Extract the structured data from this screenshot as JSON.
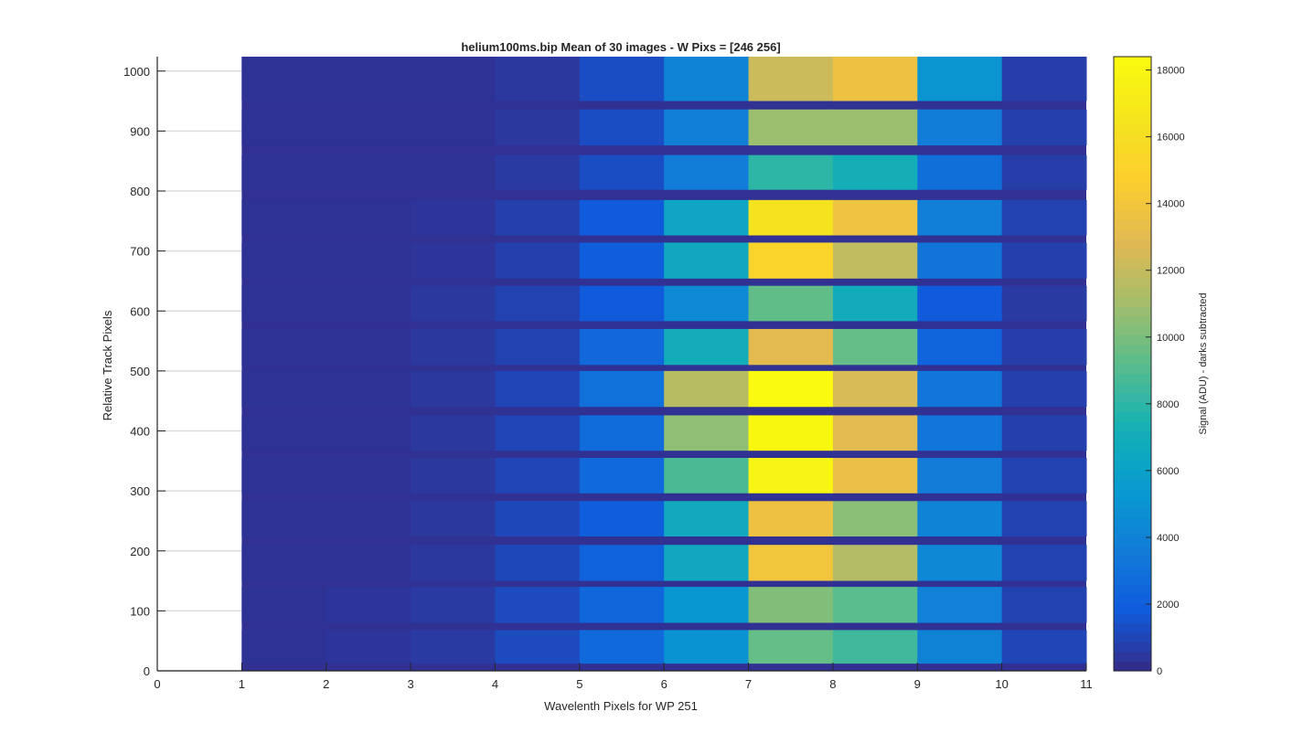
{
  "chart_data": {
    "type": "heatmap",
    "title": "helium100ms.bip  Mean of 30 images - W Pixs = [246  256]",
    "xlabel": "Wavelenth Pixels for WP 251",
    "ylabel": "Relative Track Pixels",
    "xlim": [
      0,
      11
    ],
    "ylim": [
      0,
      1024
    ],
    "xticks": [
      "0",
      "1",
      "2",
      "3",
      "4",
      "5",
      "6",
      "7",
      "8",
      "9",
      "10",
      "11"
    ],
    "yticks": [
      "0",
      "100",
      "200",
      "300",
      "400",
      "500",
      "600",
      "700",
      "800",
      "900",
      "1000"
    ],
    "grid": true,
    "colorbar": {
      "label": "Signal (ADU) - darks subtracted",
      "range": [
        0,
        18400
      ],
      "ticks": [
        "0",
        "2000",
        "4000",
        "6000",
        "8000",
        "10000",
        "12000",
        "14000",
        "16000",
        "18000"
      ],
      "colormap": "parula"
    },
    "columns_x_start": [
      1,
      2,
      3,
      4,
      5,
      6,
      7,
      8,
      9,
      10
    ],
    "bands": [
      {
        "y0": 12,
        "y1": 68,
        "values": [
          300,
          400,
          600,
          1200,
          2600,
          5000,
          9500,
          8500,
          4000,
          1000
        ]
      },
      {
        "y0": 80,
        "y1": 140,
        "values": [
          300,
          400,
          600,
          1200,
          2400,
          5200,
          10200,
          9200,
          3900,
          900
        ]
      },
      {
        "y0": 150,
        "y1": 210,
        "values": [
          300,
          300,
          500,
          1100,
          2200,
          6600,
          14000,
          11500,
          4300,
          900
        ]
      },
      {
        "y0": 224,
        "y1": 283,
        "values": [
          300,
          300,
          500,
          1100,
          2000,
          6700,
          13700,
          10400,
          4100,
          900
        ]
      },
      {
        "y0": 296,
        "y1": 355,
        "values": [
          300,
          300,
          500,
          1000,
          2600,
          8800,
          17800,
          13500,
          3600,
          900
        ]
      },
      {
        "y0": 367,
        "y1": 426,
        "values": [
          300,
          300,
          500,
          1000,
          2700,
          10500,
          18100,
          13000,
          3300,
          800
        ]
      },
      {
        "y0": 440,
        "y1": 500,
        "values": [
          300,
          300,
          500,
          1000,
          3000,
          11600,
          18300,
          12600,
          3300,
          800
        ]
      },
      {
        "y0": 510,
        "y1": 570,
        "values": [
          300,
          300,
          500,
          900,
          2500,
          7000,
          13000,
          9500,
          2300,
          700
        ]
      },
      {
        "y0": 583,
        "y1": 642,
        "values": [
          300,
          300,
          500,
          900,
          1800,
          4400,
          9400,
          6800,
          1800,
          600
        ]
      },
      {
        "y0": 654,
        "y1": 714,
        "values": [
          300,
          300,
          400,
          800,
          2000,
          6600,
          15200,
          11900,
          3200,
          800
        ]
      },
      {
        "y0": 726,
        "y1": 785,
        "values": [
          300,
          300,
          400,
          800,
          1800,
          6400,
          16300,
          13800,
          3800,
          900
        ]
      },
      {
        "y0": 802,
        "y1": 860,
        "values": [
          300,
          300,
          300,
          600,
          1300,
          3700,
          8000,
          7200,
          2900,
          700
        ]
      },
      {
        "y0": 876,
        "y1": 936,
        "values": [
          300,
          300,
          300,
          500,
          1300,
          3800,
          10800,
          10800,
          3700,
          800
        ]
      },
      {
        "y0": 950,
        "y1": 1024,
        "values": [
          300,
          300,
          300,
          500,
          1300,
          4100,
          12200,
          13700,
          5100,
          700
        ]
      }
    ],
    "gap_value": 250
  }
}
